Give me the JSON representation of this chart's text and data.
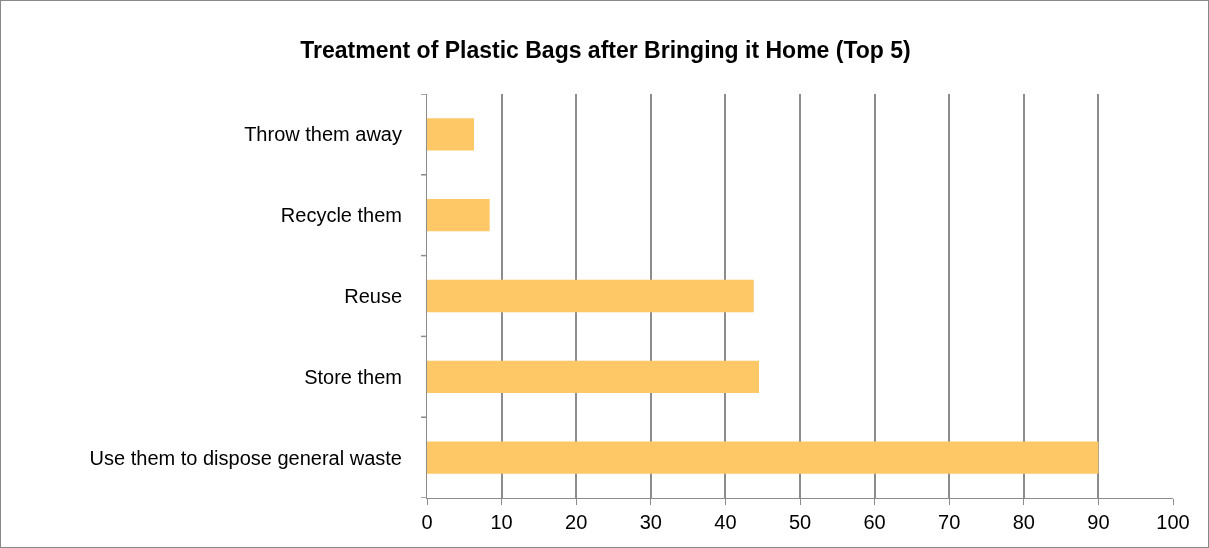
{
  "chart_data": {
    "type": "bar",
    "orientation": "horizontal",
    "title": "Treatment of Plastic Bags after Bringing it Home (Top 5)",
    "categories": [
      "Throw them away",
      "Recycle them",
      "Reuse",
      "Store them",
      "Use them to dispose general waste"
    ],
    "values": [
      6.3,
      8.4,
      43.8,
      44.5,
      90
    ],
    "color": "#ffc866",
    "xlim": [
      0,
      100
    ],
    "xticks": [
      0,
      10,
      20,
      30,
      40,
      50,
      60,
      70,
      80,
      90,
      100
    ],
    "grid": "x"
  }
}
